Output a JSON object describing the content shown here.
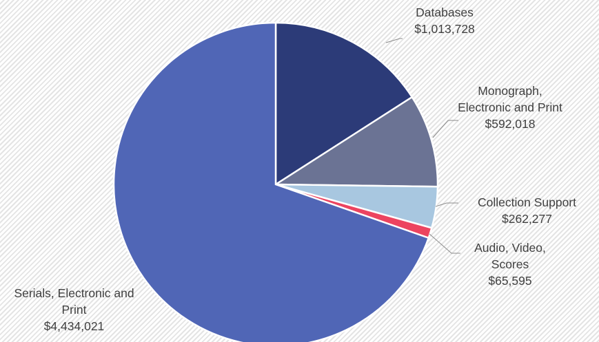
{
  "chart_data": {
    "type": "pie",
    "categories": [
      "Databases",
      "Monograph, Electronic and Print",
      "Collection Support",
      "Audio, Video, Scores",
      "Serials, Electronic and Print"
    ],
    "values": [
      1013728,
      592018,
      262277,
      65595,
      4434021
    ],
    "value_labels": [
      "$1,013,728",
      "$592,018",
      "$262,277",
      "$65,595",
      "$4,434,021"
    ],
    "colors": [
      "#2c3b78",
      "#6b7394",
      "#a8c7e0",
      "#ec4460",
      "#5066b6"
    ]
  }
}
